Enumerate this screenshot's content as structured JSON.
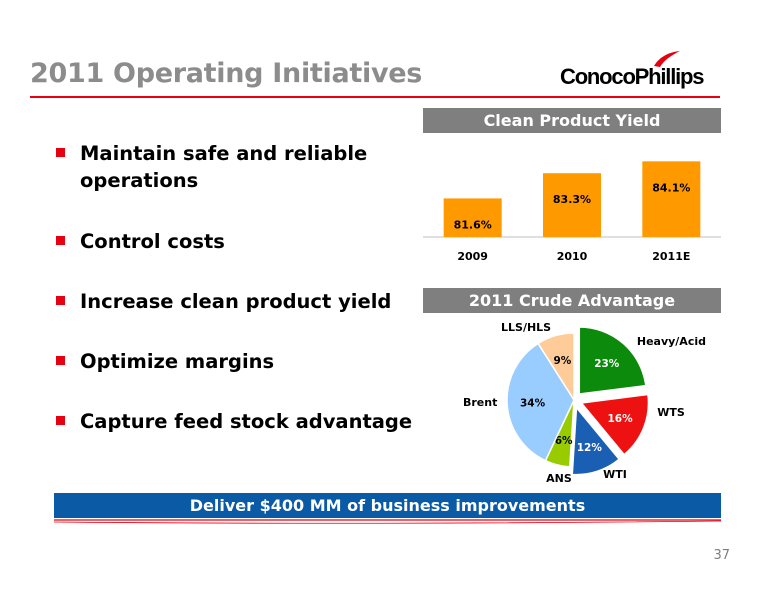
{
  "slide": {
    "title": "2011 Operating Initiatives",
    "logo_text": "ConocoPhillips",
    "bullets": [
      "Maintain safe and reliable operations",
      "Control costs",
      "Increase clean product yield",
      "Optimize margins",
      "Capture feed stock advantage"
    ],
    "banner": "Deliver $400 MM of business improvements",
    "page_number": "37",
    "colors": {
      "accent_red": "#e60012",
      "title_gray": "#8c8c8c",
      "banner_blue": "#0b5aa5",
      "bar_orange": "#ff9900"
    }
  },
  "chart_data": [
    {
      "type": "bar",
      "title": "Clean Product Yield",
      "categories": [
        "2009",
        "2010",
        "2011E"
      ],
      "values": [
        81.6,
        83.3,
        84.1
      ],
      "data_labels": [
        "81.6%",
        "83.3%",
        "84.1%"
      ],
      "ylim": [
        79,
        85
      ],
      "grid": false,
      "xlabel": "",
      "ylabel": ""
    },
    {
      "type": "pie",
      "title": "2011 Crude Advantage",
      "categories": [
        "Heavy/Acid",
        "WTS",
        "WTI",
        "ANS",
        "Brent",
        "LLS/HLS"
      ],
      "values": [
        23,
        16,
        12,
        6,
        34,
        9
      ],
      "data_labels": [
        "23%",
        "16%",
        "12%",
        "6%",
        "34%",
        "9%"
      ],
      "colors": [
        "#0b8a0b",
        "#ee1111",
        "#1a5fb4",
        "#99cc00",
        "#99ccff",
        "#ffcc99"
      ],
      "label_colors": [
        "#ffffff",
        "#ffffff",
        "#ffffff",
        "#000000",
        "#000000",
        "#000000"
      ],
      "exploded": [
        "Heavy/Acid",
        "WTS",
        "WTI"
      ]
    }
  ]
}
